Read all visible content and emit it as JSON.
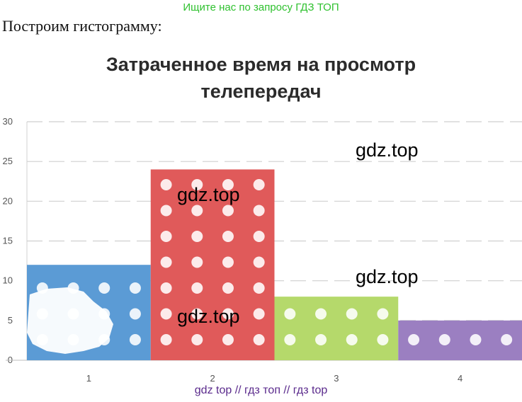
{
  "page": {
    "top_banner": "Ищите нас по запросу ГДЗ ТОП",
    "intro_text": "Построим гистограмму:",
    "bottom_banner": "gdz top  //  гдз топ  //  гдз top",
    "watermarks": [
      "gdz.top",
      "gdz.top",
      "gdz.top",
      "gdz.top"
    ]
  },
  "chart_data": {
    "type": "bar",
    "title": "Затраченное время на просмотр телепередач",
    "title_lines": [
      "Затраченное время на просмотр",
      "телепередач"
    ],
    "categories": [
      "1",
      "2",
      "3",
      "4"
    ],
    "values": [
      12,
      24,
      8,
      5
    ],
    "colors": [
      "#5b9bd5",
      "#e05a5a",
      "#b5d96b",
      "#9b7fc1"
    ],
    "ylim": [
      0,
      30
    ],
    "yticks": [
      "0",
      "5",
      "10",
      "15",
      "20",
      "25",
      "30"
    ],
    "grid": true,
    "xlabel": "",
    "ylabel": ""
  }
}
